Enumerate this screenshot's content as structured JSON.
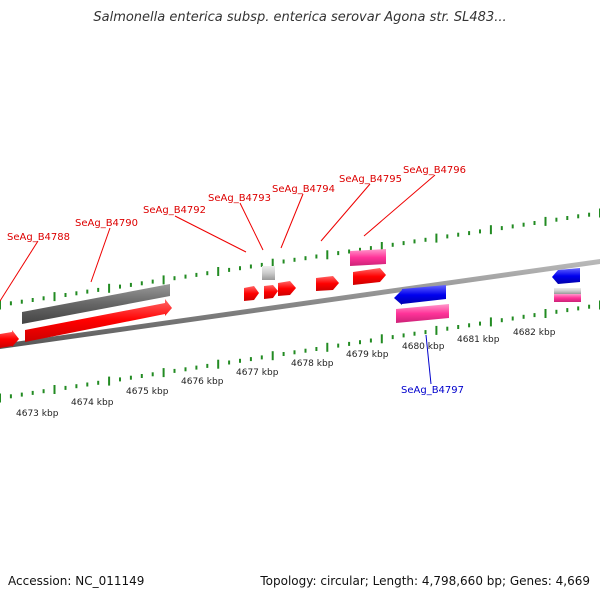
{
  "title": "Salmonella enterica subsp. enterica serovar Agona str. SL483...",
  "footer": {
    "accession": "Accession: NC_011149",
    "summary": "Topology: circular; Length: 4,798,660 bp; Genes: 4,669"
  },
  "colors": {
    "forward_gene": "#ff0000",
    "reverse_gene": "#0000ee",
    "rna": "#ff3399",
    "pseudo": "#777777",
    "backbone": "#888888",
    "tick": "#228b22",
    "label_forward": "#dd0000",
    "label_reverse": "#0000cc"
  },
  "scale_labels": [
    "4673 kbp",
    "4674 kbp",
    "4675 kbp",
    "4676 kbp",
    "4677 kbp",
    "4678 kbp",
    "4679 kbp",
    "4680 kbp",
    "4681 kbp",
    "4682 kbp"
  ],
  "gene_labels": [
    {
      "text": "SeAg_B4788",
      "strand": "forward"
    },
    {
      "text": "SeAg_B4790",
      "strand": "forward"
    },
    {
      "text": "SeAg_B4792",
      "strand": "forward"
    },
    {
      "text": "SeAg_B4793",
      "strand": "forward"
    },
    {
      "text": "SeAg_B4794",
      "strand": "forward"
    },
    {
      "text": "SeAg_B4795",
      "strand": "forward"
    },
    {
      "text": "SeAg_B4796",
      "strand": "forward"
    },
    {
      "text": "SeAg_B4797",
      "strand": "reverse"
    }
  ]
}
